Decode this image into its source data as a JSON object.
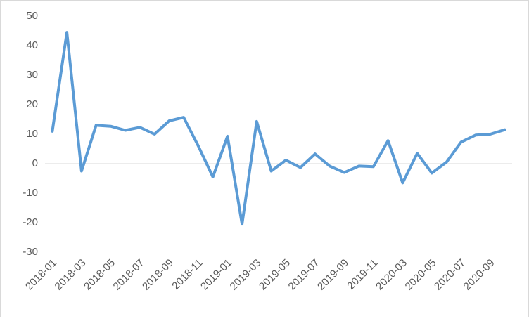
{
  "chart_data": {
    "type": "line",
    "categories": [
      "2018-01",
      null,
      "2018-03",
      null,
      "2018-05",
      null,
      "2018-07",
      null,
      "2018-09",
      null,
      "2018-11",
      null,
      "2019-01",
      null,
      "2019-03",
      null,
      "2019-05",
      null,
      "2019-07",
      null,
      "2019-09",
      null,
      "2019-11",
      null,
      "2020-03",
      null,
      "2020-05",
      null,
      "2020-07",
      null,
      "2020-09",
      null
    ],
    "series": [
      {
        "color": "#5b9bd5",
        "values": [
          11,
          44.5,
          -2.5,
          13,
          12.7,
          11.3,
          12.3,
          10,
          14.5,
          15.7,
          6,
          -4.5,
          9.3,
          -20.5,
          14.3,
          -2.5,
          1.2,
          -1.3,
          3.3,
          -0.8,
          -3,
          -0.8,
          -1,
          7.8,
          -6.5,
          3.5,
          -3.2,
          0.5,
          7.3,
          9.7,
          10,
          11.5
        ]
      }
    ],
    "ylim": [
      -30,
      50
    ],
    "yticks": [
      -30,
      -20,
      -10,
      0,
      10,
      20,
      30,
      40,
      50
    ],
    "grid": false
  }
}
